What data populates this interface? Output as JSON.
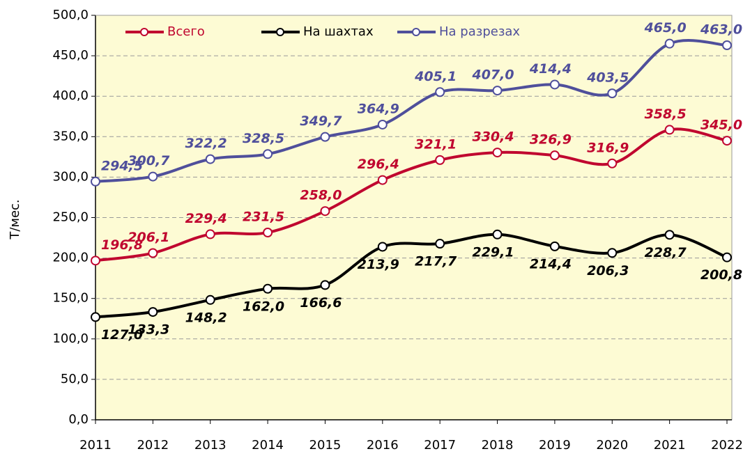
{
  "chart_data": {
    "type": "line",
    "y_label": "Т/мес.",
    "x": [
      "2011",
      "2012",
      "2013",
      "2014",
      "2015",
      "2016",
      "2017",
      "2018",
      "2019",
      "2020",
      "2021",
      "2022"
    ],
    "series": [
      {
        "name": "Всего",
        "color": "#c0062f",
        "values": [
          196.8,
          206.1,
          229.4,
          231.5,
          258.0,
          296.4,
          321.1,
          330.4,
          326.9,
          316.9,
          358.5,
          345.0
        ],
        "value_labels": [
          "196,8",
          "206,1",
          "229,4",
          "231,5",
          "258,0",
          "296,4",
          "321,1",
          "330,4",
          "326,9",
          "316,9",
          "358,5",
          "345,0"
        ]
      },
      {
        "name": "На шахтах",
        "color": "#000000",
        "values": [
          127.0,
          133.3,
          148.2,
          162.0,
          166.6,
          213.9,
          217.7,
          229.1,
          214.4,
          206.3,
          228.7,
          200.8
        ],
        "value_labels": [
          "127,0",
          "133,3",
          "148,2",
          "162,0",
          "166,6",
          "213,9",
          "217,7",
          "229,1",
          "214,4",
          "206,3",
          "228,7",
          "200,8"
        ]
      },
      {
        "name": "На разрезах",
        "color": "#4f4f9b",
        "values": [
          294.5,
          300.7,
          322.2,
          328.5,
          349.7,
          364.9,
          405.1,
          407.0,
          414.4,
          403.5,
          465.0,
          463.0
        ],
        "value_labels": [
          "294,5",
          "300,7",
          "322,2",
          "328,5",
          "349,7",
          "364,9",
          "405,1",
          "407,0",
          "414,4",
          "403,5",
          "465,0",
          "463,0"
        ]
      }
    ],
    "ylim": [
      0,
      500
    ],
    "yticks": [
      {
        "value": 0,
        "label": "0,0"
      },
      {
        "value": 50,
        "label": "50,0"
      },
      {
        "value": 100,
        "label": "100,0"
      },
      {
        "value": 150,
        "label": "150,0"
      },
      {
        "value": 200,
        "label": "200,0"
      },
      {
        "value": 250,
        "label": "250,0"
      },
      {
        "value": 300,
        "label": "300,0"
      },
      {
        "value": 350,
        "label": "350,0"
      },
      {
        "value": 400,
        "label": "400,0"
      },
      {
        "value": 450,
        "label": "450,0"
      },
      {
        "value": 500,
        "label": "500,0"
      }
    ],
    "legend": "top-left"
  }
}
